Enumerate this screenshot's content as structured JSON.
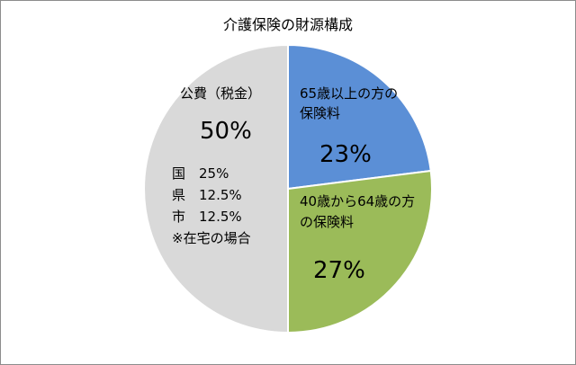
{
  "chart_data": {
    "type": "pie",
    "title": "介護保険の財源構成",
    "slices": [
      {
        "label_lines": [
          "65歳以上の方の",
          "保険料"
        ],
        "value": 23,
        "value_label": "23%",
        "color": "#5b8fd6"
      },
      {
        "label_lines": [
          "40歳から64歳の方",
          "の保険料"
        ],
        "value": 27,
        "value_label": "27%",
        "color": "#9bbb59"
      },
      {
        "label_lines": [
          "公費（税金）"
        ],
        "value": 50,
        "value_label": "50%",
        "color": "#d9d9d9",
        "note_lines": [
          "国　25%",
          "県　12.5%",
          "市　12.5%",
          "※在宅の場合"
        ]
      }
    ],
    "legend": "none"
  }
}
